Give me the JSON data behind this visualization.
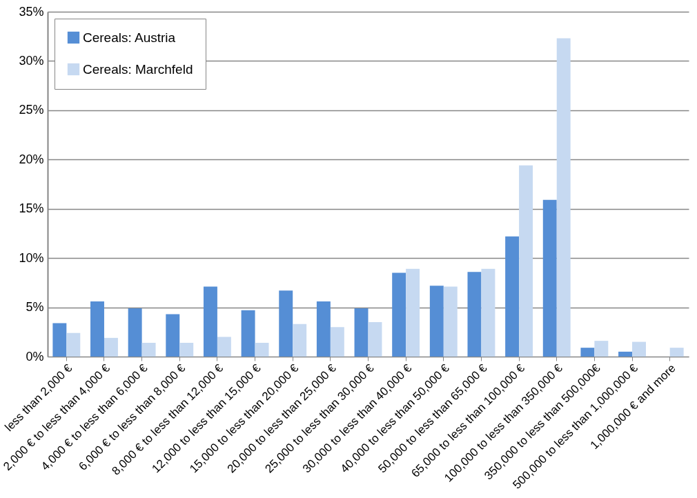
{
  "chart_data": {
    "type": "bar",
    "categories": [
      "less than 2,000 €",
      "2,000 € to less than 4,000 €",
      "4,000 € to less than 6,000 €",
      "6,000 € to less than 8,000 €",
      "8,000 € to less than 12,000 €",
      "12,000 to less than 15,000 €",
      "15,000 to less than 20,000 €",
      "20,000 to less than 25,000 €",
      "25,000 to less than 30,000 €",
      "30,000 to less than 40,000 €",
      "40,000 to less than 50,000 €",
      "50,000 to less than 65,000 €",
      "65,000 to less than 100,000 €",
      "100,000 to less than 350,000 €",
      "350,000 to less than 500,000€",
      "500,000 to less than 1,000,000 €",
      "1,000,000 € and more"
    ],
    "series": [
      {
        "name": "Cereals: Austria",
        "color": "#558ed5",
        "values": [
          3.4,
          5.6,
          4.9,
          4.3,
          7.1,
          4.7,
          6.7,
          5.6,
          4.9,
          8.5,
          7.2,
          8.6,
          12.2,
          15.9,
          0.9,
          0.5,
          null
        ]
      },
      {
        "name": "Cereals: Marchfeld",
        "color": "#c6d9f1",
        "values": [
          2.4,
          1.9,
          1.4,
          1.4,
          2.0,
          1.4,
          3.3,
          3.0,
          3.5,
          8.9,
          7.1,
          8.9,
          19.4,
          32.3,
          1.6,
          1.5,
          0.9
        ]
      }
    ],
    "ylim": [
      0,
      35
    ],
    "yticks": [
      {
        "value": 0,
        "label": "0%"
      },
      {
        "value": 5,
        "label": "5%"
      },
      {
        "value": 10,
        "label": "10%"
      },
      {
        "value": 15,
        "label": "15%"
      },
      {
        "value": 20,
        "label": "20%"
      },
      {
        "value": 25,
        "label": "25%"
      },
      {
        "value": 30,
        "label": "30%"
      },
      {
        "value": 35,
        "label": "35%"
      }
    ],
    "grid": "y",
    "legend": "top left"
  }
}
